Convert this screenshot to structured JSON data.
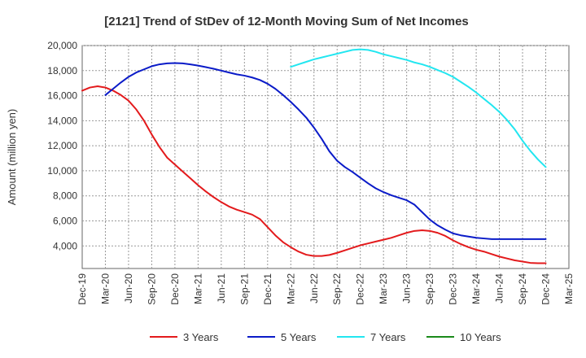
{
  "chart_data": {
    "type": "line",
    "title": "[2121]  Trend of StDev of 12-Month Moving Sum of Net Incomes",
    "xlabel": "",
    "ylabel": "Amount (million yen)",
    "ylim": [
      2200,
      20000
    ],
    "yticks": [
      "4,000",
      "6,000",
      "8,000",
      "10,000",
      "12,000",
      "14,000",
      "16,000",
      "18,000",
      "20,000"
    ],
    "ytick_values": [
      4000,
      6000,
      8000,
      10000,
      12000,
      14000,
      16000,
      18000,
      20000
    ],
    "xticks": [
      "Dec-19",
      "Mar-20",
      "Jun-20",
      "Sep-20",
      "Dec-20",
      "Mar-21",
      "Jun-21",
      "Sep-21",
      "Dec-21",
      "Mar-22",
      "Jun-22",
      "Sep-22",
      "Dec-22",
      "Mar-23",
      "Jun-23",
      "Sep-23",
      "Dec-23",
      "Mar-24",
      "Jun-24",
      "Sep-24",
      "Dec-24",
      "Mar-25"
    ],
    "grid": true,
    "legend_position": "bottom",
    "series": [
      {
        "name": "3 Years",
        "color": "#e31a1c",
        "x": [
          "2019-12",
          "2020-01",
          "2020-02",
          "2020-03",
          "2020-04",
          "2020-05",
          "2020-06",
          "2020-07",
          "2020-08",
          "2020-09",
          "2020-10",
          "2020-11",
          "2020-12",
          "2021-01",
          "2021-02",
          "2021-03",
          "2021-04",
          "2021-05",
          "2021-06",
          "2021-07",
          "2021-08",
          "2021-09",
          "2021-10",
          "2021-11",
          "2021-12",
          "2022-01",
          "2022-02",
          "2022-03",
          "2022-04",
          "2022-05",
          "2022-06",
          "2022-07",
          "2022-08",
          "2022-09",
          "2022-10",
          "2022-11",
          "2022-12",
          "2023-01",
          "2023-02",
          "2023-03",
          "2023-04",
          "2023-05",
          "2023-06",
          "2023-07",
          "2023-08",
          "2023-09",
          "2023-10",
          "2023-11",
          "2023-12",
          "2024-01",
          "2024-02",
          "2024-03",
          "2024-04",
          "2024-05",
          "2024-06",
          "2024-07",
          "2024-08",
          "2024-09",
          "2024-10",
          "2024-11",
          "2024-12"
        ],
        "values": [
          16400,
          16650,
          16750,
          16650,
          16400,
          16050,
          15600,
          14900,
          14000,
          12900,
          11900,
          11050,
          10500,
          9950,
          9400,
          8850,
          8350,
          7900,
          7500,
          7150,
          6900,
          6700,
          6500,
          6150,
          5500,
          4850,
          4300,
          3900,
          3550,
          3300,
          3200,
          3200,
          3280,
          3450,
          3650,
          3850,
          4050,
          4200,
          4350,
          4500,
          4650,
          4850,
          5050,
          5200,
          5250,
          5200,
          5050,
          4800,
          4450,
          4150,
          3900,
          3700,
          3550,
          3350,
          3150,
          3000,
          2850,
          2750,
          2650,
          2620,
          2620
        ]
      },
      {
        "name": "5 Years",
        "color": "#0a1bc8",
        "x": [
          "2020-03",
          "2020-04",
          "2020-05",
          "2020-06",
          "2020-07",
          "2020-08",
          "2020-09",
          "2020-10",
          "2020-11",
          "2020-12",
          "2021-01",
          "2021-02",
          "2021-03",
          "2021-04",
          "2021-05",
          "2021-06",
          "2021-07",
          "2021-08",
          "2021-09",
          "2021-10",
          "2021-11",
          "2021-12",
          "2022-01",
          "2022-02",
          "2022-03",
          "2022-04",
          "2022-05",
          "2022-06",
          "2022-07",
          "2022-08",
          "2022-09",
          "2022-10",
          "2022-11",
          "2022-12",
          "2023-01",
          "2023-02",
          "2023-03",
          "2023-04",
          "2023-05",
          "2023-06",
          "2023-07",
          "2023-08",
          "2023-09",
          "2023-10",
          "2023-11",
          "2023-12",
          "2024-01",
          "2024-02",
          "2024-03",
          "2024-04",
          "2024-05",
          "2024-06",
          "2024-07",
          "2024-08",
          "2024-09",
          "2024-10",
          "2024-11",
          "2024-12"
        ],
        "values": [
          16050,
          16550,
          17050,
          17500,
          17850,
          18100,
          18350,
          18500,
          18580,
          18600,
          18580,
          18500,
          18400,
          18280,
          18150,
          18000,
          17850,
          17700,
          17600,
          17450,
          17250,
          16950,
          16550,
          16050,
          15500,
          14900,
          14250,
          13450,
          12550,
          11550,
          10800,
          10300,
          9900,
          9450,
          9000,
          8600,
          8300,
          8050,
          7850,
          7650,
          7300,
          6700,
          6100,
          5650,
          5300,
          5000,
          4850,
          4750,
          4650,
          4600,
          4550,
          4550,
          4550,
          4550,
          4550,
          4550,
          4550,
          4550
        ]
      },
      {
        "name": "7 Years",
        "color": "#22e6f0",
        "x": [
          "2022-03",
          "2022-04",
          "2022-05",
          "2022-06",
          "2022-07",
          "2022-08",
          "2022-09",
          "2022-10",
          "2022-11",
          "2022-12",
          "2023-01",
          "2023-02",
          "2023-03",
          "2023-04",
          "2023-05",
          "2023-06",
          "2023-07",
          "2023-08",
          "2023-09",
          "2023-10",
          "2023-11",
          "2023-12",
          "2024-01",
          "2024-02",
          "2024-03",
          "2024-04",
          "2024-05",
          "2024-06",
          "2024-07",
          "2024-08",
          "2024-09",
          "2024-10",
          "2024-11",
          "2024-12"
        ],
        "values": [
          18300,
          18500,
          18700,
          18900,
          19050,
          19200,
          19350,
          19500,
          19650,
          19700,
          19650,
          19500,
          19300,
          19150,
          19000,
          18850,
          18650,
          18500,
          18300,
          18050,
          17800,
          17500,
          17100,
          16700,
          16250,
          15750,
          15250,
          14700,
          14050,
          13300,
          12400,
          11600,
          10900,
          10300
        ]
      },
      {
        "name": "10 Years",
        "color": "#1a8a1a",
        "x": [],
        "values": []
      }
    ]
  }
}
